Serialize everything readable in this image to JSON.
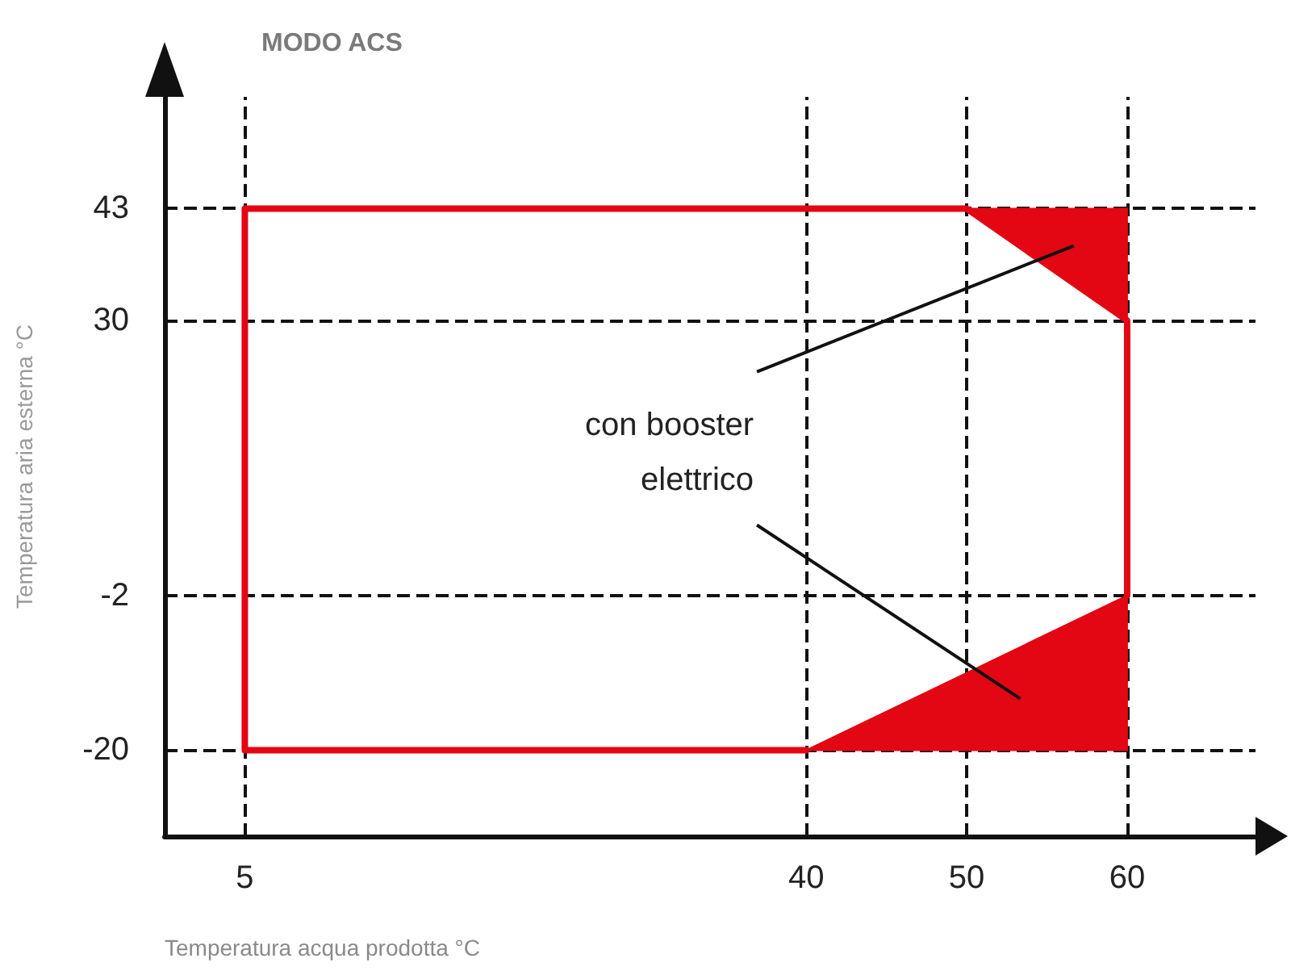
{
  "chart_data": {
    "type": "line",
    "title": "MODO ACS",
    "xlabel": "Temperatura acqua prodotta °C",
    "ylabel": "Temperatura aria esterna °C",
    "xlim": [
      0,
      68
    ],
    "ylim": [
      -30,
      56
    ],
    "xticks": [
      5,
      40,
      50,
      60
    ],
    "yticks": [
      -20,
      -2,
      30,
      43
    ],
    "grid": false,
    "marker": "none",
    "tick_labels": "xy",
    "series": [
      {
        "type": "area",
        "color": "#e30613",
        "x": [
          50,
          60,
          60
        ],
        "values": [
          43,
          43,
          30
        ]
      },
      {
        "type": "area",
        "color": "#e30613",
        "x": [
          40,
          60,
          60
        ],
        "values": [
          -20,
          -20,
          -2
        ]
      },
      {
        "color": "#e30613",
        "x": [
          40,
          5,
          5,
          50,
          60,
          60
        ],
        "values": [
          -20,
          -20,
          43,
          43,
          30,
          -2
        ]
      }
    ],
    "ref_lines": [
      {
        "axis": "y",
        "value": 43,
        "line_style": "dashed",
        "color": "#111111"
      },
      {
        "axis": "y",
        "value": 30,
        "line_style": "dashed",
        "color": "#111111"
      },
      {
        "axis": "y",
        "value": -2,
        "line_style": "dashed",
        "color": "#111111"
      },
      {
        "axis": "y",
        "value": -20,
        "line_style": "dashed",
        "color": "#111111"
      },
      {
        "axis": "x",
        "value": 5,
        "line_style": "dashed",
        "color": "#111111"
      },
      {
        "axis": "x",
        "value": 40,
        "line_style": "dashed",
        "color": "#111111"
      },
      {
        "axis": "x",
        "value": 50,
        "line_style": "dashed",
        "color": "#111111"
      },
      {
        "axis": "x",
        "value": 60,
        "line_style": "dashed",
        "color": "#111111"
      }
    ],
    "annotations": [
      "con booster elettrico"
    ]
  }
}
